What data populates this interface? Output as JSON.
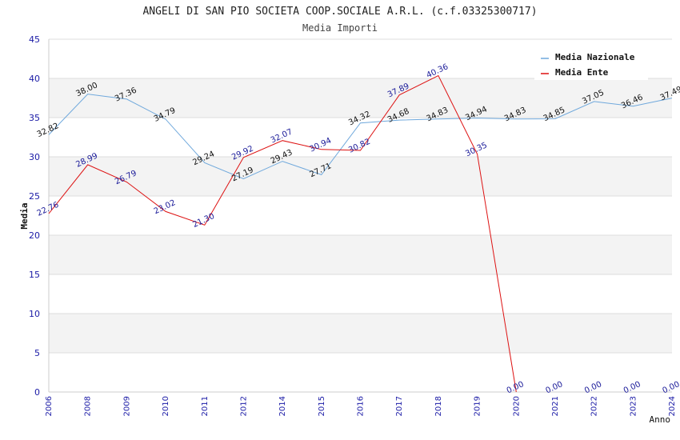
{
  "chart_data": {
    "type": "line",
    "title": "ANGELI DI SAN PIO SOCIETA COOP.SOCIALE A.R.L. (c.f.03325300717)",
    "subtitle": "Media Importi",
    "xlabel": "Anno",
    "ylabel": "Media",
    "ylim": [
      0,
      45
    ],
    "yticks": [
      0,
      5,
      10,
      15,
      20,
      25,
      30,
      35,
      40,
      45
    ],
    "grid": "horizontal bands",
    "legend_position": "top-right",
    "categories": [
      "2006",
      "2008",
      "2009",
      "2010",
      "2011",
      "2012",
      "2014",
      "2015",
      "2016",
      "2017",
      "2018",
      "2019",
      "2020",
      "2021",
      "2022",
      "2023",
      "2024"
    ],
    "series": [
      {
        "name": "Media Nazionale",
        "color": "#6fa8dc",
        "values": [
          32.82,
          38.0,
          37.36,
          34.79,
          29.24,
          27.19,
          29.43,
          27.71,
          34.32,
          34.68,
          34.83,
          34.94,
          34.83,
          34.85,
          37.05,
          36.46,
          37.49
        ],
        "labels": [
          "32.82",
          "38.00",
          "37.36",
          "34.79",
          "29.24",
          "27.19",
          "29.43",
          "27.71",
          "34.32",
          "34.68",
          "34.83",
          "34.94",
          "34.83",
          "34.85",
          "37.05",
          "36.46",
          "37.49"
        ]
      },
      {
        "name": "Media Ente",
        "color": "#dd1111",
        "values": [
          22.76,
          28.99,
          26.79,
          23.02,
          21.3,
          29.92,
          32.07,
          30.94,
          30.82,
          37.89,
          40.36,
          30.35,
          0.0,
          null,
          null,
          null,
          null
        ],
        "labels": [
          "22.76",
          "28.99",
          "26.79",
          "23.02",
          "21.30",
          "29.92",
          "32.07",
          "30.94",
          "30.82",
          "37.89",
          "40.36",
          "30.35",
          "0.00",
          "0.00",
          "0.00",
          "0.00",
          "0.00"
        ]
      }
    ]
  }
}
